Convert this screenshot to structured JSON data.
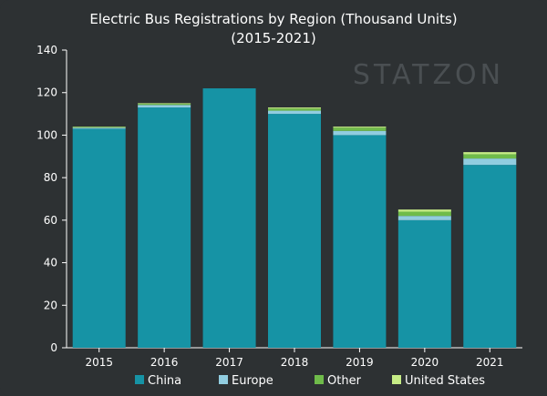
{
  "colors": {
    "background": "#2d3133",
    "axis": "#ffffff",
    "gridline": "#3a3f42"
  },
  "watermark": "STATZON",
  "chart_data": {
    "type": "bar",
    "stacked": true,
    "title": "Electric Bus Registrations by Region (Thousand Units)",
    "subtitle": "(2015-2021)",
    "xlabel": "",
    "ylabel": "",
    "categories": [
      "2015",
      "2016",
      "2017",
      "2018",
      "2019",
      "2020",
      "2021"
    ],
    "ylim": [
      0,
      140
    ],
    "yticks": [
      0,
      20,
      40,
      60,
      80,
      100,
      120,
      140
    ],
    "grid": false,
    "legend_position": "bottom",
    "series": [
      {
        "name": "China",
        "color": "#1693a5",
        "values": [
          103,
          113,
          122,
          110,
          100,
          60,
          86
        ]
      },
      {
        "name": "Europe",
        "color": "#91cde0",
        "values": [
          0.5,
          1.2,
          0,
          1.5,
          2,
          2,
          3
        ]
      },
      {
        "name": "Other",
        "color": "#6fbb4a",
        "values": [
          0.3,
          0.5,
          0,
          1,
          1.5,
          2,
          2
        ]
      },
      {
        "name": "United States",
        "color": "#c6ec86",
        "values": [
          0.2,
          0.3,
          0,
          0.5,
          0.5,
          1,
          1
        ]
      }
    ]
  }
}
